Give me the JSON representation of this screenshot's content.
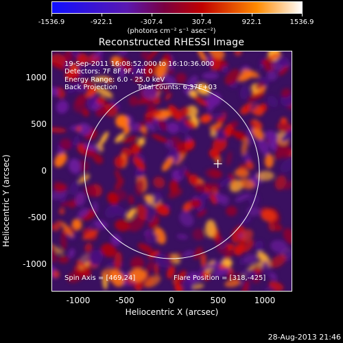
{
  "colorbar": {
    "ticks": [
      "-1536.9",
      "-922.1",
      "-307.4",
      "307.4",
      "922.1",
      "1536.9"
    ],
    "units": "(photons cm⁻² s⁻¹ asec⁻²)",
    "colors": [
      "#1010ff",
      "#5a18b0",
      "#7a0040",
      "#c00000",
      "#ff8a00",
      "#ffffff"
    ]
  },
  "title": "Reconstructed RHESSI Image",
  "info": {
    "line1": "19-Sep-2011 16:08:52.000 to 16:10:36.000",
    "line2": "Detectors: 7F 8F 9F, Att 0",
    "line3": "Energy Range: 6.0 - 25.0 keV",
    "line4a": "Back Projection",
    "line4b": "Total counts: 6.37E+03",
    "spin_axis": "Spin Axis = [469,24]",
    "flare_position": "Flare Position = [318,-425]"
  },
  "axes": {
    "xlabel": "Heliocentric X (arcsec)",
    "ylabel": "Heliocentric Y (arcsec)",
    "xticks": [
      "-1000",
      "-500",
      "0",
      "500",
      "1000"
    ],
    "yticks": [
      "1000",
      "500",
      "0",
      "-500",
      "-1000"
    ],
    "xlim": [
      -1300,
      1300
    ],
    "ylim": [
      -1300,
      1300
    ]
  },
  "solar_disk_radius_arcsec": 950,
  "marker_position_arcsec": [
    500,
    80
  ],
  "footer_date": "28-Aug-2013 21:46"
}
